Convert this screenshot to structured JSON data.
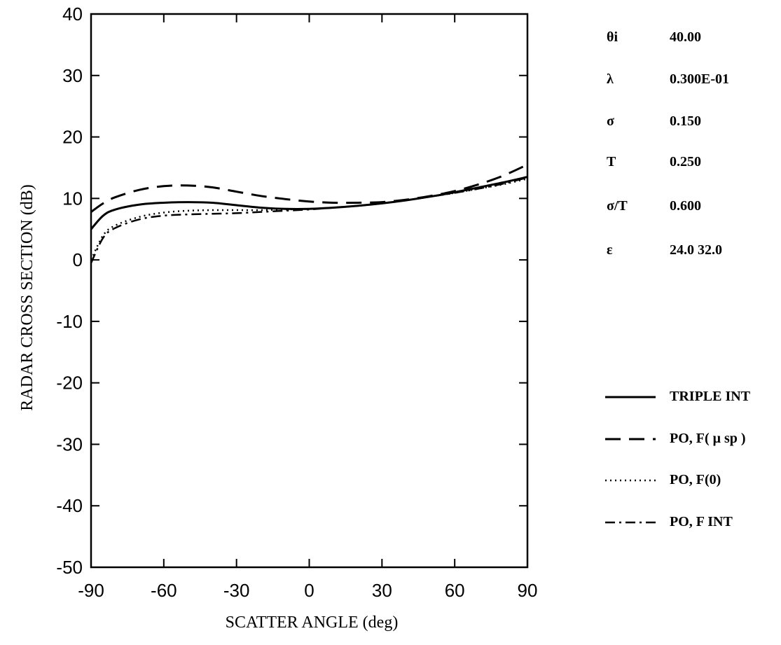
{
  "chart_data": {
    "type": "line",
    "xlabel": "SCATTER ANGLE (deg)",
    "ylabel": "RADAR CROSS SECTION (dB)",
    "xlim": [
      -90,
      90
    ],
    "ylim": [
      -50,
      40
    ],
    "xticks": [
      "-90",
      "-60",
      "-30",
      "0",
      "30",
      "60",
      "90"
    ],
    "yticks": [
      "40",
      "30",
      "20",
      "10",
      "0",
      "-10",
      "-20",
      "-30",
      "-40",
      "-50"
    ],
    "grid": false,
    "legend_position": "right",
    "series": [
      {
        "name": "TRIPLE INT",
        "style": "solid",
        "x": [
          -90,
          -85,
          -80,
          -70,
          -60,
          -50,
          -40,
          -30,
          -20,
          -10,
          0,
          10,
          20,
          30,
          40,
          50,
          60,
          70,
          80,
          90
        ],
        "y": [
          5.0,
          7.2,
          8.2,
          9.0,
          9.3,
          9.4,
          9.3,
          8.9,
          8.5,
          8.3,
          8.3,
          8.5,
          8.8,
          9.2,
          9.7,
          10.3,
          11.0,
          11.8,
          12.6,
          13.5
        ]
      },
      {
        "name": "PO, F( μ sp )",
        "style": "dashed",
        "x": [
          -90,
          -85,
          -80,
          -70,
          -60,
          -50,
          -40,
          -30,
          -20,
          -10,
          0,
          10,
          20,
          30,
          40,
          50,
          60,
          70,
          80,
          90
        ],
        "y": [
          7.8,
          9.2,
          10.2,
          11.4,
          12.0,
          12.1,
          11.8,
          11.1,
          10.4,
          9.9,
          9.5,
          9.3,
          9.3,
          9.4,
          9.8,
          10.4,
          11.2,
          12.3,
          13.7,
          15.5
        ]
      },
      {
        "name": "PO, F(0)",
        "style": "dotted",
        "x": [
          -90,
          -85,
          -80,
          -70,
          -60,
          -50,
          -40,
          -30,
          -20,
          -10,
          0,
          10,
          20,
          30,
          40,
          50,
          60,
          70,
          80,
          90
        ],
        "y": [
          0.0,
          4.0,
          5.6,
          7.0,
          7.7,
          8.0,
          8.1,
          8.1,
          8.1,
          8.2,
          8.3,
          8.5,
          8.8,
          9.2,
          9.7,
          10.3,
          10.9,
          11.6,
          12.3,
          13.2
        ]
      },
      {
        "name": "PO, F INT",
        "style": "dash-dot",
        "x": [
          -90,
          -85,
          -80,
          -70,
          -60,
          -50,
          -40,
          -30,
          -20,
          -10,
          0,
          10,
          20,
          30,
          40,
          50,
          60,
          70,
          80,
          90
        ],
        "y": [
          -0.5,
          3.6,
          5.2,
          6.6,
          7.2,
          7.4,
          7.5,
          7.6,
          7.8,
          8.0,
          8.2,
          8.5,
          8.8,
          9.2,
          9.7,
          10.3,
          10.9,
          11.6,
          12.4,
          13.4
        ]
      }
    ]
  },
  "parameters": [
    {
      "symbol": "θi",
      "value": "40.00"
    },
    {
      "symbol": "λ",
      "value": "0.300E-01"
    },
    {
      "symbol": "σ",
      "value": "0.150"
    },
    {
      "symbol": "T",
      "value": "0.250"
    },
    {
      "symbol": "σ/T",
      "value": "0.600"
    },
    {
      "symbol": "ε",
      "value": "24.0  32.0"
    }
  ],
  "legend": [
    {
      "label": "TRIPLE INT",
      "style": "solid"
    },
    {
      "label": "PO, F( μ sp )",
      "style": "dashed"
    },
    {
      "label": "PO, F(0)",
      "style": "dotted"
    },
    {
      "label": "PO, F INT",
      "style": "dash-dot"
    }
  ]
}
